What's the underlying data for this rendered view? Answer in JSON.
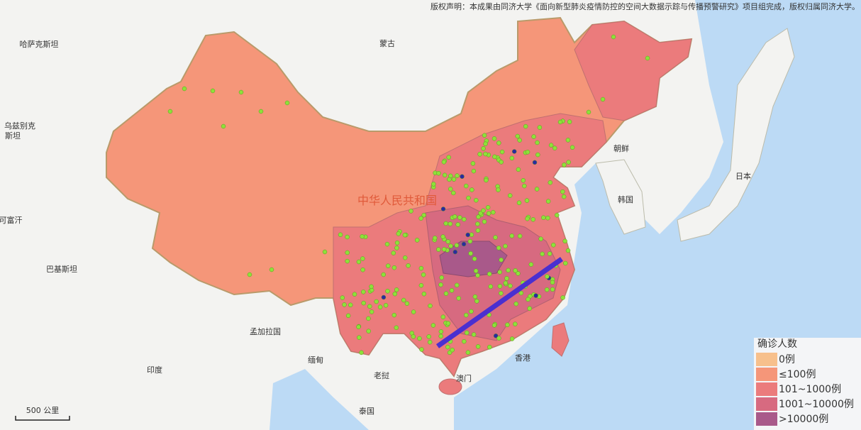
{
  "header": {
    "copyright": "版权声明：本成果由同济大学《面向新型肺炎疫情防控的空间大数据示踪与传播预警研究》项目组完成，版权归属同济大学。"
  },
  "map": {
    "country_label": "中华人民共和国",
    "place_labels": [
      "哈萨克斯坦",
      "蒙古",
      "乌兹别克",
      "斯坦",
      "可富汗",
      "巴基斯坦",
      "印度",
      "孟加拉国",
      "缅甸",
      "老挝",
      "泰国",
      "朝鲜",
      "韩国",
      "日本",
      "香港",
      "澳门"
    ]
  },
  "legend": {
    "title": "确诊人数",
    "items": [
      {
        "label": "0例",
        "color": "#f7c08c"
      },
      {
        "label": "≤100例",
        "color": "#f59679"
      },
      {
        "label": "101~1000例",
        "color": "#eb7b7c"
      },
      {
        "label": "1001~10000例",
        "color": "#d76a80"
      },
      {
        "label": ">10000例",
        "color": "#a9598a"
      }
    ]
  },
  "scale": {
    "label": "500 公里"
  }
}
